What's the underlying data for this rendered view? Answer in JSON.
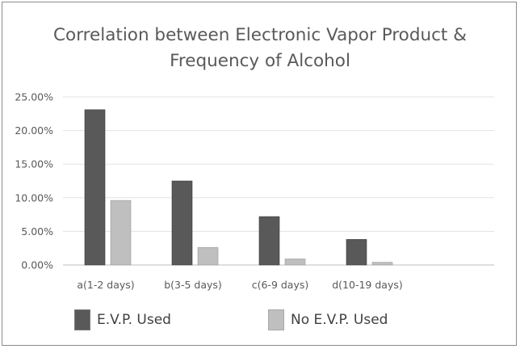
{
  "chart_data": {
    "type": "bar",
    "title": [
      "Correlation between Electronic Vapor Product &",
      "Frequency of Alcohol"
    ],
    "xlabel": "",
    "ylabel": "",
    "categories": [
      "a(1-2 days)",
      "b(3-5 days)",
      "c(6-9 days)",
      "d(10-19 days)"
    ],
    "series": [
      {
        "name": "E.V.P. Used",
        "color": "#595959",
        "values": [
          23.1,
          12.5,
          7.2,
          3.8
        ]
      },
      {
        "name": "No E.V.P. Used",
        "color": "#bfbfbf",
        "values": [
          9.6,
          2.6,
          0.9,
          0.4
        ]
      }
    ],
    "ylim": [
      0,
      25
    ],
    "yticks": [
      "0.00%",
      "5.00%",
      "10.00%",
      "15.00%",
      "20.00%",
      "25.00%"
    ],
    "grid": true,
    "legend": "bottom-left"
  }
}
